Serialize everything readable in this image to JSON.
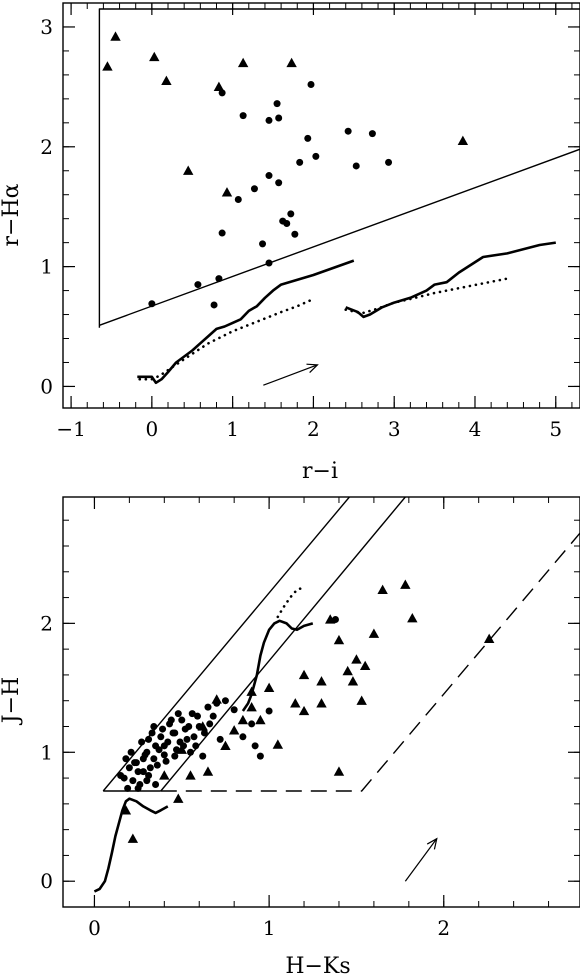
{
  "chart_data": [
    {
      "type": "scatter",
      "xlabel": "r−i",
      "ylabel": "r−Hα",
      "xlim": [
        -1.1,
        5.3
      ],
      "ylim": [
        -0.18,
        3.2
      ],
      "xticks": [
        -1,
        0,
        1,
        2,
        3,
        4,
        5
      ],
      "xtick_labels": [
        "−1",
        "0",
        "1",
        "2",
        "3",
        "4",
        "5"
      ],
      "yticks": [
        0,
        1,
        2,
        3
      ],
      "ytick_labels": [
        "0",
        "1",
        "2",
        "3"
      ],
      "grid": false,
      "series": [
        {
          "marker": "triangle",
          "points": [
            [
              -0.45,
              2.92
            ],
            [
              -0.55,
              2.67
            ],
            [
              0.03,
              2.75
            ],
            [
              0.18,
              2.55
            ],
            [
              0.45,
              1.8
            ],
            [
              0.83,
              2.5
            ],
            [
              0.93,
              1.62
            ],
            [
              1.13,
              2.7
            ],
            [
              1.73,
              2.7
            ],
            [
              3.85,
              2.05
            ]
          ]
        },
        {
          "marker": "circle",
          "points": [
            [
              0.87,
              2.45
            ],
            [
              1.13,
              2.26
            ],
            [
              1.55,
              2.36
            ],
            [
              1.45,
              2.22
            ],
            [
              1.57,
              2.24
            ],
            [
              1.97,
              2.52
            ],
            [
              1.93,
              2.07
            ],
            [
              2.43,
              2.13
            ],
            [
              2.73,
              2.11
            ],
            [
              2.03,
              1.92
            ],
            [
              1.83,
              1.87
            ],
            [
              2.53,
              1.84
            ],
            [
              2.93,
              1.87
            ],
            [
              1.45,
              1.76
            ],
            [
              1.27,
              1.65
            ],
            [
              1.57,
              1.7
            ],
            [
              1.07,
              1.56
            ],
            [
              1.72,
              1.44
            ],
            [
              1.62,
              1.38
            ],
            [
              1.67,
              1.36
            ],
            [
              1.77,
              1.27
            ],
            [
              0.87,
              1.28
            ],
            [
              1.37,
              1.19
            ],
            [
              1.45,
              1.03
            ],
            [
              0.83,
              0.9
            ],
            [
              0.57,
              0.85
            ],
            [
              0.77,
              0.68
            ],
            [
              0.0,
              0.69
            ]
          ]
        }
      ],
      "lines": [
        {
          "style": "solid",
          "width": 1.4,
          "points": [
            [
              -0.65,
              0.49
            ],
            [
              -0.65,
              3.15
            ],
            [
              5.3,
              3.15
            ]
          ]
        },
        {
          "style": "solid",
          "width": 1.4,
          "points": [
            [
              -0.65,
              0.51
            ],
            [
              5.3,
              1.98
            ]
          ]
        },
        {
          "style": "solid",
          "width": 2.6,
          "points": [
            [
              -0.18,
              0.08
            ],
            [
              0.0,
              0.08
            ],
            [
              0.05,
              0.03
            ],
            [
              0.12,
              0.06
            ],
            [
              0.2,
              0.12
            ],
            [
              0.3,
              0.2
            ],
            [
              0.4,
              0.25
            ],
            [
              0.5,
              0.3
            ],
            [
              0.6,
              0.36
            ],
            [
              0.7,
              0.42
            ],
            [
              0.8,
              0.48
            ],
            [
              0.9,
              0.5
            ],
            [
              1.0,
              0.53
            ],
            [
              1.1,
              0.56
            ],
            [
              1.2,
              0.63
            ],
            [
              1.3,
              0.67
            ],
            [
              1.4,
              0.74
            ],
            [
              1.5,
              0.8
            ],
            [
              1.6,
              0.85
            ],
            [
              2.0,
              0.93
            ],
            [
              2.5,
              1.05
            ]
          ]
        },
        {
          "style": "dotted",
          "width": 2.6,
          "points": [
            [
              -0.15,
              0.06
            ],
            [
              0.0,
              0.06
            ],
            [
              0.1,
              0.09
            ],
            [
              0.25,
              0.16
            ],
            [
              0.45,
              0.25
            ],
            [
              0.7,
              0.36
            ],
            [
              1.0,
              0.46
            ],
            [
              1.3,
              0.54
            ],
            [
              1.6,
              0.62
            ],
            [
              1.8,
              0.67
            ],
            [
              2.0,
              0.73
            ]
          ]
        },
        {
          "style": "solid",
          "width": 2.6,
          "points": [
            [
              2.4,
              0.66
            ],
            [
              2.55,
              0.62
            ],
            [
              2.62,
              0.58
            ],
            [
              2.7,
              0.6
            ],
            [
              2.85,
              0.66
            ],
            [
              3.0,
              0.7
            ],
            [
              3.2,
              0.74
            ],
            [
              3.4,
              0.8
            ],
            [
              3.5,
              0.85
            ],
            [
              3.65,
              0.87
            ],
            [
              3.8,
              0.95
            ],
            [
              4.1,
              1.08
            ],
            [
              4.4,
              1.11
            ],
            [
              4.8,
              1.18
            ],
            [
              5.0,
              1.2
            ]
          ]
        },
        {
          "style": "dotted",
          "width": 2.6,
          "points": [
            [
              2.4,
              0.64
            ],
            [
              2.6,
              0.61
            ],
            [
              2.8,
              0.65
            ],
            [
              3.0,
              0.7
            ],
            [
              3.2,
              0.73
            ],
            [
              3.5,
              0.78
            ],
            [
              3.8,
              0.82
            ],
            [
              4.1,
              0.86
            ],
            [
              4.4,
              0.9
            ]
          ]
        }
      ],
      "arrows": [
        {
          "from": [
            1.38,
            0.01
          ],
          "to": [
            2.05,
            0.18
          ]
        }
      ]
    },
    {
      "type": "scatter",
      "xlabel": "H−Ks",
      "ylabel": "J−H",
      "xlim": [
        -0.18,
        2.78
      ],
      "ylim": [
        -0.2,
        2.98
      ],
      "xticks": [
        0,
        1,
        2
      ],
      "xtick_labels": [
        "0",
        "1",
        "2"
      ],
      "yticks": [
        0,
        1,
        2
      ],
      "ytick_labels": [
        "0",
        "1",
        "2"
      ],
      "grid": false,
      "series": [
        {
          "marker": "triangle",
          "points": [
            [
              1.78,
              2.3
            ],
            [
              1.65,
              2.26
            ],
            [
              1.82,
              2.04
            ],
            [
              1.35,
              2.03
            ],
            [
              2.26,
              1.88
            ],
            [
              1.6,
              1.92
            ],
            [
              1.4,
              1.87
            ],
            [
              1.5,
              1.72
            ],
            [
              1.55,
              1.67
            ],
            [
              1.45,
              1.63
            ],
            [
              1.3,
              1.55
            ],
            [
              1.48,
              1.55
            ],
            [
              0.9,
              1.47
            ],
            [
              1.0,
              1.5
            ],
            [
              1.2,
              1.6
            ],
            [
              1.53,
              1.4
            ],
            [
              1.15,
              1.38
            ],
            [
              1.3,
              1.38
            ],
            [
              1.2,
              1.32
            ],
            [
              0.7,
              1.41
            ],
            [
              0.9,
              1.35
            ],
            [
              0.85,
              1.25
            ],
            [
              0.95,
              1.25
            ],
            [
              0.62,
              1.2
            ],
            [
              0.8,
              1.17
            ],
            [
              0.5,
              1.02
            ],
            [
              1.05,
              1.06
            ],
            [
              0.75,
              1.05
            ],
            [
              0.4,
              0.82
            ],
            [
              0.55,
              0.82
            ],
            [
              0.65,
              0.85
            ],
            [
              1.4,
              0.85
            ],
            [
              0.48,
              0.64
            ],
            [
              0.22,
              0.33
            ],
            [
              0.18,
              0.55
            ]
          ]
        },
        {
          "marker": "circle",
          "points": [
            [
              0.17,
              0.8
            ],
            [
              0.2,
              0.88
            ],
            [
              0.23,
              0.92
            ],
            [
              0.25,
              0.85
            ],
            [
              0.28,
              0.95
            ],
            [
              0.3,
              1.0
            ],
            [
              0.32,
              0.88
            ],
            [
              0.35,
              1.05
            ],
            [
              0.38,
              1.12
            ],
            [
              0.4,
              0.98
            ],
            [
              0.42,
              1.08
            ],
            [
              0.45,
              1.15
            ],
            [
              0.22,
              0.78
            ],
            [
              0.26,
              0.75
            ],
            [
              0.31,
              0.82
            ],
            [
              0.36,
              0.9
            ],
            [
              0.43,
              1.22
            ],
            [
              0.47,
              1.02
            ],
            [
              0.5,
              1.25
            ],
            [
              0.53,
              1.1
            ],
            [
              0.56,
              1.3
            ],
            [
              0.6,
              1.2
            ],
            [
              0.65,
              1.35
            ],
            [
              0.68,
              1.28
            ],
            [
              0.18,
              0.95
            ],
            [
              0.21,
              1.0
            ],
            [
              0.27,
              1.08
            ],
            [
              0.33,
              1.15
            ],
            [
              0.39,
              1.18
            ],
            [
              0.44,
              1.25
            ],
            [
              0.48,
              1.3
            ],
            [
              0.52,
              1.18
            ],
            [
              0.58,
              1.05
            ],
            [
              0.62,
              0.97
            ],
            [
              0.24,
              0.92
            ],
            [
              0.29,
              0.98
            ],
            [
              0.34,
              0.95
            ],
            [
              0.37,
              1.02
            ],
            [
              0.41,
              0.93
            ],
            [
              0.46,
              0.97
            ],
            [
              0.15,
              0.82
            ],
            [
              0.19,
              0.72
            ],
            [
              0.25,
              0.72
            ],
            [
              0.3,
              0.78
            ],
            [
              0.35,
              0.75
            ],
            [
              0.55,
              1.0
            ],
            [
              0.63,
              1.15
            ],
            [
              0.7,
              1.38
            ],
            [
              0.75,
              1.4
            ],
            [
              0.8,
              1.33
            ],
            [
              0.85,
              1.12
            ],
            [
              0.9,
              1.22
            ],
            [
              0.92,
              1.05
            ],
            [
              0.95,
              0.97
            ],
            [
              1.0,
              1.32
            ],
            [
              1.38,
              2.03
            ],
            [
              0.72,
              1.1
            ],
            [
              0.66,
              1.22
            ],
            [
              0.57,
              1.12
            ],
            [
              0.49,
              1.08
            ],
            [
              0.31,
              1.1
            ],
            [
              0.28,
              0.85
            ],
            [
              0.34,
              1.2
            ],
            [
              0.4,
              1.05
            ],
            [
              0.46,
              1.15
            ],
            [
              0.51,
              1.05
            ],
            [
              0.54,
              1.2
            ],
            [
              0.59,
              1.28
            ]
          ]
        }
      ],
      "lines": [
        {
          "style": "solid",
          "width": 1.4,
          "points": [
            [
              0.05,
              0.7
            ],
            [
              1.46,
              2.98
            ]
          ]
        },
        {
          "style": "solid",
          "width": 1.4,
          "points": [
            [
              0.38,
              0.7
            ],
            [
              1.78,
              2.98
            ]
          ]
        },
        {
          "style": "solid",
          "width": 1.4,
          "points": [
            [
              0.05,
              0.7
            ],
            [
              0.38,
              0.7
            ]
          ]
        },
        {
          "style": "dashed",
          "width": 1.4,
          "points": [
            [
              0.38,
              0.7
            ],
            [
              1.53,
              0.7
            ],
            [
              2.78,
              2.7
            ]
          ]
        },
        {
          "style": "solid",
          "width": 2.6,
          "points": [
            [
              0.0,
              -0.08
            ],
            [
              0.03,
              -0.06
            ],
            [
              0.06,
              0.0
            ],
            [
              0.08,
              0.1
            ],
            [
              0.1,
              0.22
            ],
            [
              0.12,
              0.35
            ],
            [
              0.14,
              0.45
            ],
            [
              0.16,
              0.55
            ],
            [
              0.18,
              0.62
            ],
            [
              0.2,
              0.64
            ],
            [
              0.24,
              0.62
            ],
            [
              0.28,
              0.58
            ],
            [
              0.32,
              0.55
            ],
            [
              0.35,
              0.53
            ],
            [
              0.38,
              0.55
            ],
            [
              0.42,
              0.58
            ]
          ]
        },
        {
          "style": "solid",
          "width": 2.6,
          "points": [
            [
              0.85,
              1.32
            ],
            [
              0.88,
              1.38
            ],
            [
              0.9,
              1.45
            ],
            [
              0.93,
              1.6
            ],
            [
              0.95,
              1.75
            ],
            [
              0.97,
              1.85
            ],
            [
              1.0,
              1.95
            ],
            [
              1.03,
              2.0
            ],
            [
              1.06,
              2.02
            ],
            [
              1.1,
              2.0
            ],
            [
              1.13,
              1.96
            ],
            [
              1.16,
              1.95
            ],
            [
              1.2,
              1.98
            ],
            [
              1.25,
              2.0
            ]
          ]
        },
        {
          "style": "dotted",
          "width": 2.6,
          "points": [
            [
              1.05,
              2.05
            ],
            [
              1.08,
              2.12
            ],
            [
              1.12,
              2.2
            ],
            [
              1.16,
              2.26
            ],
            [
              1.2,
              2.28
            ]
          ]
        }
      ],
      "arrows": [
        {
          "from": [
            1.78,
            0.0
          ],
          "to": [
            1.96,
            0.33
          ]
        }
      ]
    }
  ]
}
